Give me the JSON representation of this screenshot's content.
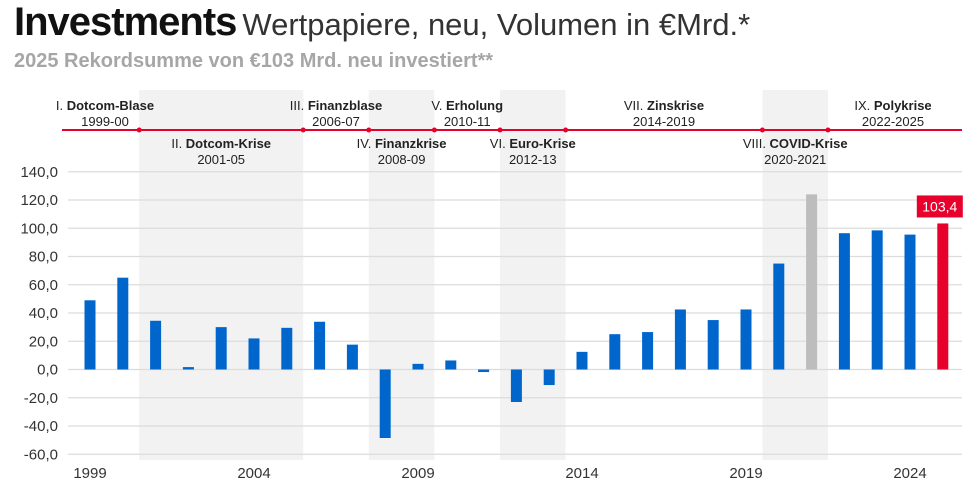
{
  "header": {
    "title": "Investments",
    "subtitle": "Wertpapiere, neu, Volumen in €Mrd.*",
    "note": "2025 Rekordsumme von €103 Mrd. neu investiert**"
  },
  "periods": [
    {
      "num": "I.",
      "name": "Dotcom-Blase",
      "years": "1999-00",
      "row": "top",
      "from": 1999,
      "to": 2000,
      "shaded": false
    },
    {
      "num": "II.",
      "name": "Dotcom-Krise",
      "years": "2001-05",
      "row": "bottom",
      "from": 2001,
      "to": 2005,
      "shaded": true
    },
    {
      "num": "III.",
      "name": "Finanzblase",
      "years": "2006-07",
      "row": "top",
      "from": 2006,
      "to": 2007,
      "shaded": false
    },
    {
      "num": "IV.",
      "name": "Finanzkrise",
      "years": "2008-09",
      "row": "bottom",
      "from": 2008,
      "to": 2009,
      "shaded": true
    },
    {
      "num": "V.",
      "name": "Erholung",
      "years": "2010-11",
      "row": "top",
      "from": 2010,
      "to": 2011,
      "shaded": false
    },
    {
      "num": "VI.",
      "name": "Euro-Krise",
      "years": "2012-13",
      "row": "bottom",
      "from": 2012,
      "to": 2013,
      "shaded": true
    },
    {
      "num": "VII.",
      "name": "Zinskrise",
      "years": "2014-2019",
      "row": "top",
      "from": 2014,
      "to": 2019,
      "shaded": false
    },
    {
      "num": "VIII.",
      "name": "COVID-Krise",
      "years": "2020-2021",
      "row": "bottom",
      "from": 2020,
      "to": 2021,
      "shaded": true
    },
    {
      "num": "IX.",
      "name": "Polykrise",
      "years": "2022-2025",
      "row": "top",
      "from": 2022,
      "to": 2025,
      "shaded": false
    }
  ],
  "colors": {
    "bar": "#0066cc",
    "highlight": "#e8002d",
    "covid": "#bdbdbd",
    "band": "#f2f2f2",
    "grid": "#dcdcdc",
    "timeline": "#e8002d"
  },
  "chart_data": {
    "type": "bar",
    "x": [
      1999,
      2000,
      2001,
      2002,
      2003,
      2004,
      2005,
      2006,
      2007,
      2008,
      2009,
      2010,
      2011,
      2012,
      2013,
      2014,
      2015,
      2016,
      2017,
      2018,
      2019,
      2020,
      2021,
      2022,
      2023,
      2024,
      2025
    ],
    "values": [
      49,
      65,
      34.5,
      1.7,
      30,
      22,
      29.5,
      33.8,
      17.6,
      -48.5,
      4,
      6.4,
      -1.8,
      -23,
      -11,
      12.5,
      25,
      26.5,
      42.5,
      35,
      42.5,
      75,
      124,
      96.5,
      98.5,
      95.5,
      103.4
    ],
    "bar_colors": {
      "2021": "covid",
      "2025": "highlight"
    },
    "data_labels": [
      {
        "x": 2025,
        "text": "103,4"
      }
    ],
    "ylim": [
      -60,
      140
    ],
    "yticks": [
      "140,0",
      "120,0",
      "100,0",
      "80,0",
      "60,0",
      "40,0",
      "20,0",
      "0,0",
      "-20,0",
      "-40,0",
      "-60,0"
    ],
    "ytick_values": [
      140,
      120,
      100,
      80,
      60,
      40,
      20,
      0,
      -20,
      -40,
      -60
    ],
    "xticks": [
      "1999",
      "2004",
      "2009",
      "2014",
      "2019",
      "2024"
    ],
    "grid": true,
    "title": "",
    "xlabel": "",
    "ylabel": ""
  }
}
